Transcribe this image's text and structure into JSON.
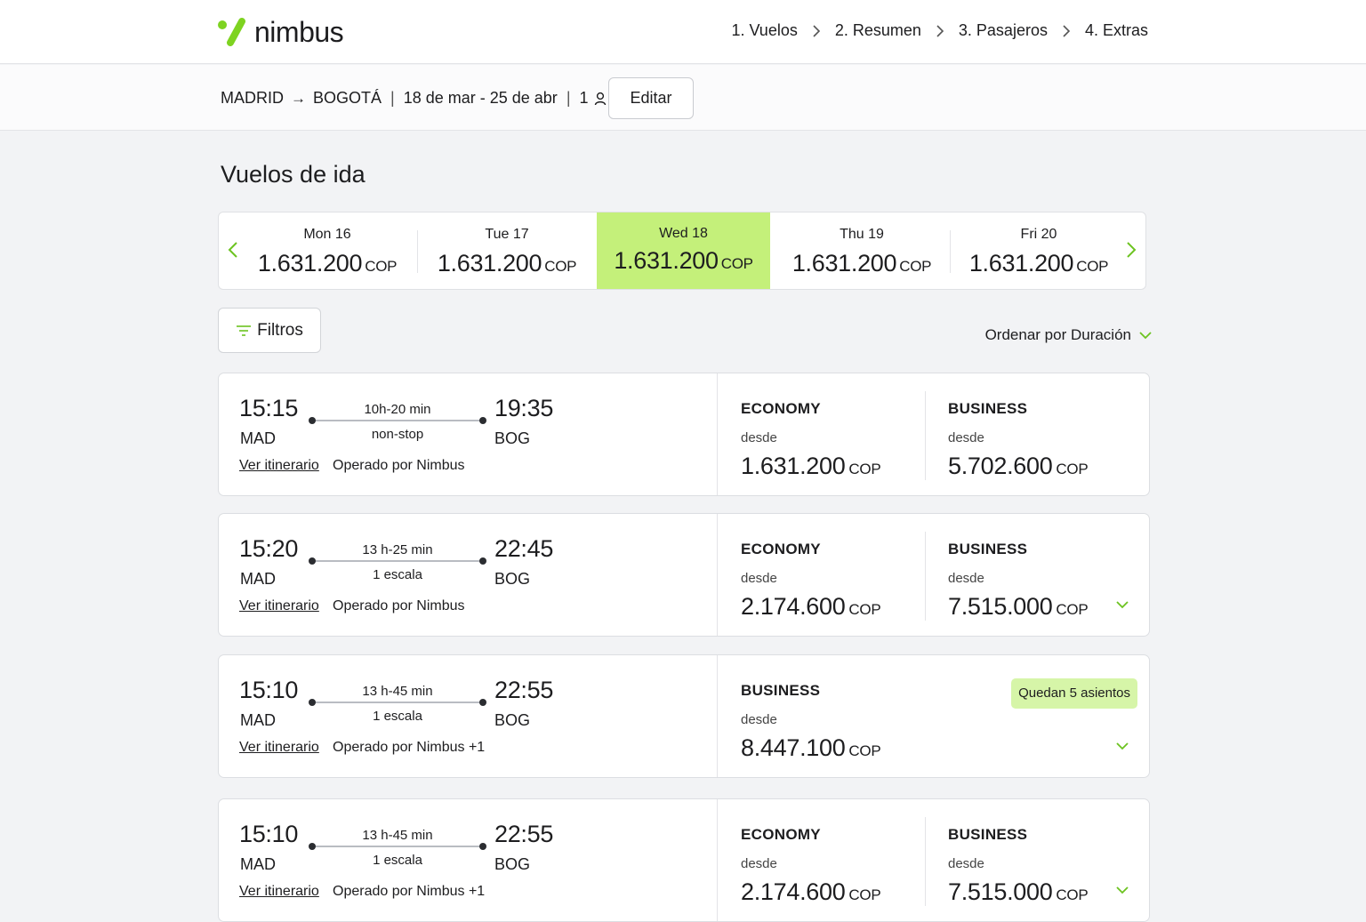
{
  "brand": {
    "name": "nimbus",
    "accent": "#7ed321"
  },
  "steps": [
    "1. Vuelos",
    "2. Resumen",
    "3. Pasajeros",
    "4. Extras"
  ],
  "search": {
    "origin": "MADRID",
    "destination": "BOGOTÁ",
    "dates": "18 de mar - 25 de abr",
    "passengers": "1",
    "edit_label": "Editar"
  },
  "section_title": "Vuelos de ida",
  "date_strip": [
    {
      "label": "Mon 16",
      "price": "1.631.200",
      "currency": "COP",
      "selected": false
    },
    {
      "label": "Tue 17",
      "price": "1.631.200",
      "currency": "COP",
      "selected": false
    },
    {
      "label": "Wed 18",
      "price": "1.631.200",
      "currency": "COP",
      "selected": true
    },
    {
      "label": "Thu 19",
      "price": "1.631.200",
      "currency": "COP",
      "selected": false
    },
    {
      "label": "Fri 20",
      "price": "1.631.200",
      "currency": "COP",
      "selected": false
    }
  ],
  "filters_label": "Filtros",
  "sort_label": "Ordenar por Duración",
  "labels": {
    "itinerary": "Ver itinerario",
    "from": "desde"
  },
  "flights": [
    {
      "dep_time": "15:15",
      "dep_code": "MAD",
      "arr_time": "19:35",
      "arr_code": "BOG",
      "duration": "10h-20 min",
      "stops": "non-stop",
      "operator": "Operado por Nimbus",
      "economy": {
        "label": "ECONOMY",
        "price": "1.631.200",
        "currency": "COP"
      },
      "business": {
        "label": "BUSINESS",
        "price": "5.702.600",
        "currency": "COP"
      }
    },
    {
      "dep_time": "15:20",
      "dep_code": "MAD",
      "arr_time": "22:45",
      "arr_code": "BOG",
      "duration": "13 h-25 min",
      "stops": "1 escala",
      "operator": "Operado por Nimbus",
      "economy": {
        "label": "ECONOMY",
        "price": "2.174.600",
        "currency": "COP"
      },
      "business": {
        "label": "BUSINESS",
        "price": "7.515.000",
        "currency": "COP"
      }
    },
    {
      "dep_time": "15:10",
      "dep_code": "MAD",
      "arr_time": "22:55",
      "arr_code": "BOG",
      "duration": "13 h-45 min",
      "stops": "1 escala",
      "operator": "Operado por Nimbus +1",
      "business": {
        "label": "BUSINESS",
        "price": "8.447.100",
        "currency": "COP"
      },
      "badge": "Quedan 5 asientos"
    },
    {
      "dep_time": "15:10",
      "dep_code": "MAD",
      "arr_time": "22:55",
      "arr_code": "BOG",
      "duration": "13 h-45 min",
      "stops": "1 escala",
      "operator": "Operado por Nimbus +1",
      "economy": {
        "label": "ECONOMY",
        "price": "2.174.600",
        "currency": "COP"
      },
      "business": {
        "label": "BUSINESS",
        "price": "7.515.000",
        "currency": "COP"
      }
    }
  ]
}
